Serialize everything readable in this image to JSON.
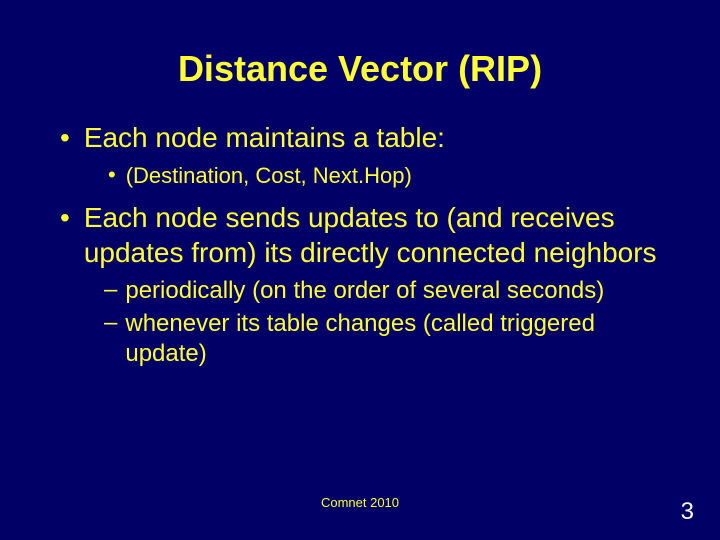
{
  "title": "Distance Vector (RIP)",
  "bullets": {
    "item1": "Each node maintains a table:",
    "sub1": "(Destination, Cost, Next.Hop)",
    "item2": "Each node sends updates to (and receives updates from) its directly connected neighbors",
    "dash1": "periodically (on the order of several seconds)",
    "dash2": "whenever its table changes (called triggered update)"
  },
  "footer": "Comnet 2010",
  "page_number": "3",
  "colors": {
    "background": "#000066",
    "text": "#ffff33",
    "page_number": "#ffffff"
  },
  "fonts": {
    "title_size": 36,
    "bullet_size": 28,
    "sub_bullet_size": 22,
    "dash_size": 24,
    "footer_size": 13,
    "page_number_size": 24,
    "family": "Arial"
  }
}
